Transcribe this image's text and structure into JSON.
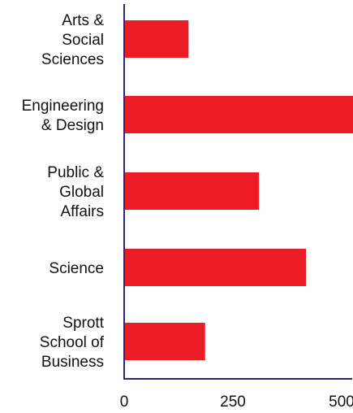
{
  "chart_data": {
    "type": "bar",
    "orientation": "horizontal",
    "categories": [
      [
        "Arts &",
        "Social",
        "Sciences"
      ],
      [
        "Engineering",
        "& Design"
      ],
      [
        "Public &",
        "Global",
        "Affairs"
      ],
      [
        "Science"
      ],
      [
        "Sprott",
        "School of",
        "Business"
      ]
    ],
    "values": [
      148,
      582,
      310,
      418,
      186
    ],
    "xlim": [
      0,
      600
    ],
    "xticks": [
      0,
      250,
      500
    ],
    "title": "",
    "xlabel": "",
    "ylabel": "",
    "grid": false,
    "colors": {
      "bar": "#ec1c24",
      "axis": "#2b2a6b"
    }
  }
}
